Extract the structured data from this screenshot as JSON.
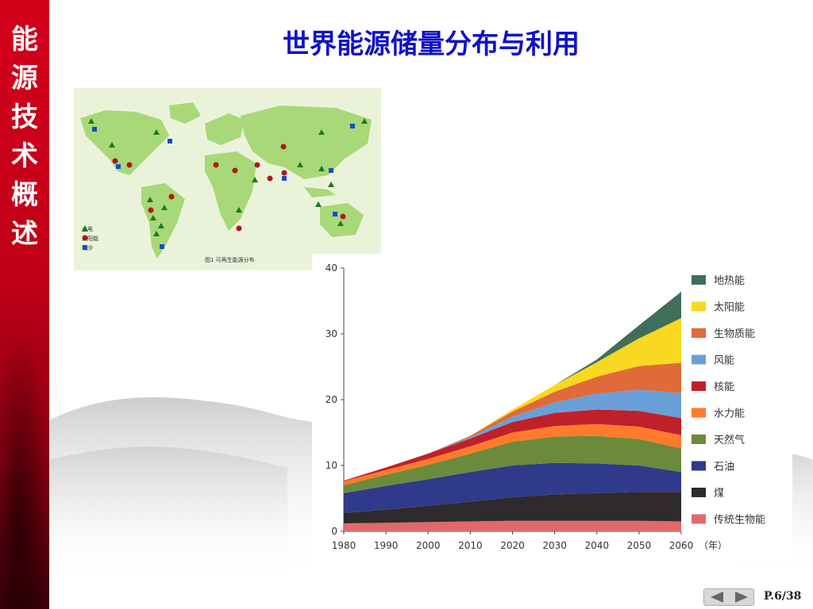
{
  "sidebar": {
    "chars": [
      "能",
      "源",
      "技",
      "术",
      "概",
      "述"
    ]
  },
  "title": "世界能源储量分布与利用",
  "map": {
    "caption": "图1 可再生能源分布",
    "legend": [
      {
        "label": "水电",
        "color": "#1a7a1a",
        "icon": "triangle-icon"
      },
      {
        "label": "太阳能",
        "color": "#b01818",
        "icon": "circle-icon"
      },
      {
        "label": "潮汐",
        "color": "#1050c8",
        "icon": "square-icon"
      }
    ]
  },
  "chart_data": {
    "type": "area",
    "x": [
      1980,
      1990,
      2000,
      2010,
      2020,
      2030,
      2040,
      2050,
      2060
    ],
    "x_unit": "（年）",
    "ylim": [
      0,
      40
    ],
    "yticks": [
      0,
      10,
      20,
      30,
      40
    ],
    "series": [
      {
        "name": "传统生物能",
        "color": "#e06a6a",
        "values": [
          1.2,
          1.3,
          1.4,
          1.5,
          1.6,
          1.6,
          1.6,
          1.6,
          1.5
        ]
      },
      {
        "name": "煤",
        "color": "#2e2a2e",
        "values": [
          1.6,
          2.0,
          2.5,
          3.0,
          3.6,
          4.0,
          4.2,
          4.4,
          4.5
        ]
      },
      {
        "name": "石油",
        "color": "#2f3a8a",
        "values": [
          3.0,
          3.6,
          4.0,
          4.5,
          4.8,
          4.8,
          4.5,
          4.0,
          3.0
        ]
      },
      {
        "name": "天然气",
        "color": "#6b8a3a",
        "values": [
          1.2,
          1.7,
          2.2,
          2.8,
          3.6,
          4.0,
          4.2,
          4.0,
          3.6
        ]
      },
      {
        "name": "水力能",
        "color": "#ff7a2a",
        "values": [
          0.6,
          0.7,
          0.9,
          1.1,
          1.4,
          1.6,
          1.8,
          1.9,
          2.0
        ]
      },
      {
        "name": "核能",
        "color": "#c0202a",
        "values": [
          0.1,
          0.4,
          0.8,
          1.2,
          1.6,
          2.0,
          2.2,
          2.4,
          2.6
        ]
      },
      {
        "name": "风能",
        "color": "#6aa0d8",
        "values": [
          0.0,
          0.0,
          0.0,
          0.2,
          0.8,
          1.6,
          2.4,
          3.2,
          3.8
        ]
      },
      {
        "name": "生物质能",
        "color": "#e06a3a",
        "values": [
          0.0,
          0.0,
          0.0,
          0.2,
          0.8,
          1.6,
          2.6,
          3.6,
          4.6
        ]
      },
      {
        "name": "太阳能",
        "color": "#f8d820",
        "values": [
          0.0,
          0.0,
          0.0,
          0.0,
          0.3,
          1.0,
          2.2,
          4.2,
          6.8
        ]
      },
      {
        "name": "地热能",
        "color": "#3f6e5a",
        "values": [
          0.0,
          0.0,
          0.0,
          0.0,
          0.0,
          0.0,
          0.4,
          2.0,
          4.0
        ]
      }
    ]
  },
  "footer": {
    "page": "P.6/38"
  }
}
